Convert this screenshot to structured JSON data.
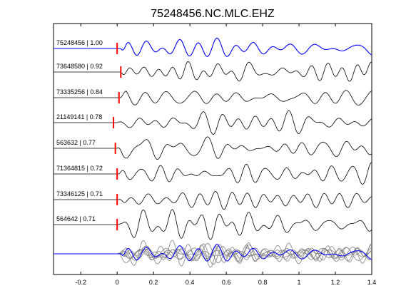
{
  "chart_data": {
    "type": "line",
    "title": "75248456.NC.MLC.EHZ",
    "xlabel": "",
    "ylabel": "",
    "xlim": [
      -0.35,
      1.4
    ],
    "xticks": [
      -0.2,
      0,
      0.2,
      0.4,
      0.6,
      0.8,
      1,
      1.2,
      1.4
    ],
    "xtick_labels": [
      "-0.2",
      "0",
      "0.2",
      "0.4",
      "0.6",
      "0.8",
      "1",
      "1.2",
      "1.4"
    ],
    "grid": false,
    "colors": {
      "reference": "#0000ff",
      "trace": "#000000",
      "pick": "#ff0000",
      "stack_gray": "#808080",
      "axes": "#000000"
    },
    "traces": [
      {
        "label": "75248456 | 1.00",
        "pick_time": 0.0,
        "onset": 0.02,
        "reference": true
      },
      {
        "label": "73648580 | 0.92",
        "pick_time": 0.02,
        "onset": 0.02,
        "reference": false
      },
      {
        "label": "73335256 | 0.84",
        "pick_time": 0.01,
        "onset": 0.02,
        "reference": false
      },
      {
        "label": "21149141 | 0.78",
        "pick_time": -0.02,
        "onset": 0.0,
        "reference": false
      },
      {
        "label": "563632 | 0.77",
        "pick_time": -0.01,
        "onset": 0.0,
        "reference": false
      },
      {
        "label": "71364815 | 0.72",
        "pick_time": 0.0,
        "onset": 0.01,
        "reference": false
      },
      {
        "label": "73346125 | 0.71",
        "pick_time": 0.0,
        "onset": 0.01,
        "reference": false
      },
      {
        "label": "564642 | 0.71",
        "pick_time": 0.0,
        "onset": 0.01,
        "reference": false
      }
    ],
    "stack_panel": true
  }
}
